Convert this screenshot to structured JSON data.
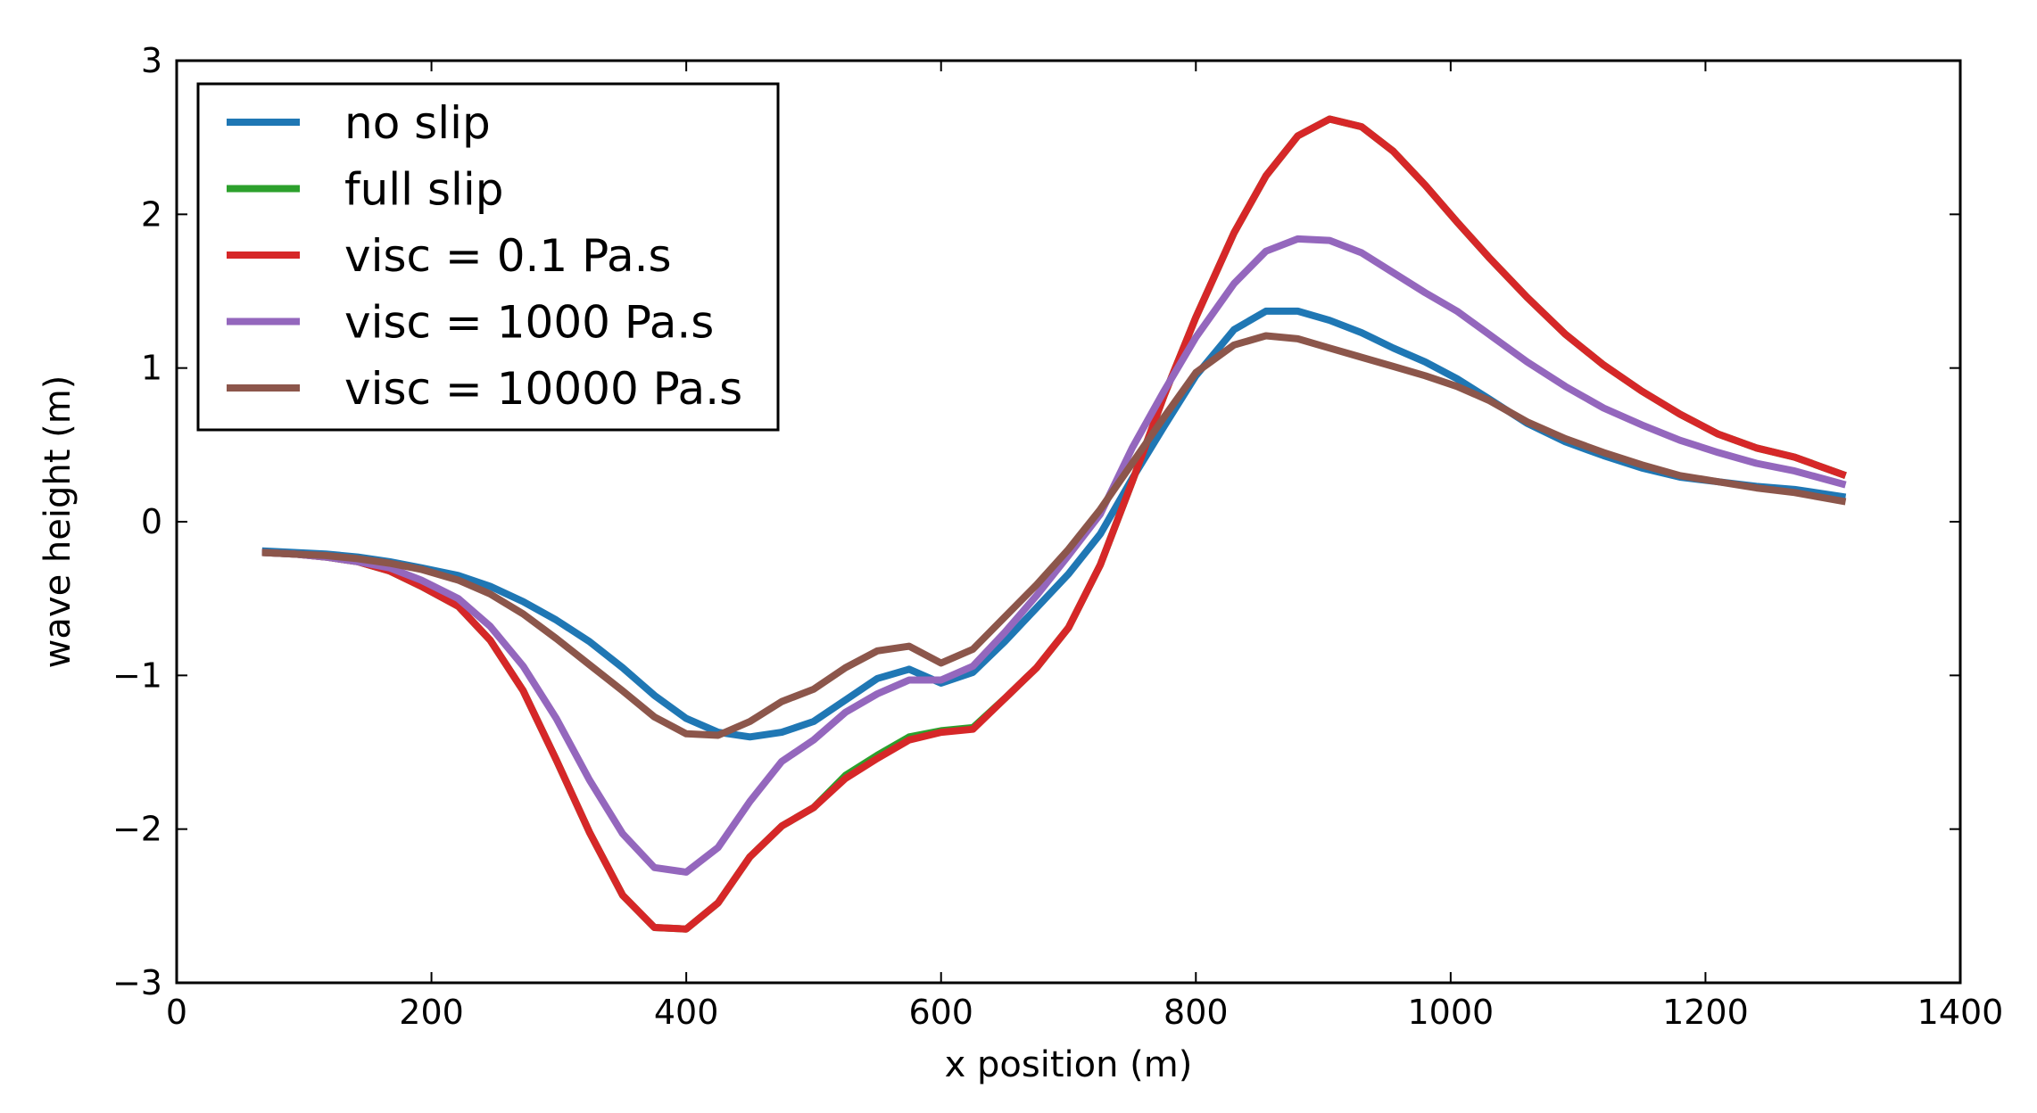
{
  "chart_data": {
    "type": "line",
    "title": "",
    "xlabel": "x position (m)",
    "ylabel": "wave height (m)",
    "xlim": [
      0,
      1400
    ],
    "ylim": [
      -3,
      3
    ],
    "xticks": [
      0,
      200,
      400,
      600,
      800,
      1000,
      1200,
      1400
    ],
    "xtick_labels": [
      "0",
      "200",
      "400",
      "600",
      "800",
      "1000",
      "1200",
      "1400"
    ],
    "yticks": [
      -3,
      -2,
      -1,
      0,
      1,
      2,
      3
    ],
    "ytick_labels": [
      "−3",
      "−2",
      "−1",
      "0",
      "1",
      "2",
      "3"
    ],
    "grid": false,
    "legend_position": "top-left",
    "x": [
      67,
      92,
      117,
      142,
      167,
      192,
      221,
      246,
      272,
      298,
      324,
      350,
      375,
      400,
      425,
      450,
      475,
      500,
      525,
      550,
      575,
      600,
      625,
      650,
      675,
      700,
      725,
      750,
      775,
      800,
      830,
      855,
      880,
      905,
      930,
      955,
      980,
      1005,
      1030,
      1060,
      1090,
      1120,
      1150,
      1180,
      1210,
      1240,
      1270,
      1310
    ],
    "series": [
      {
        "name": "no slip",
        "color": "#1f77b4",
        "values": [
          -0.19,
          -0.2,
          -0.21,
          -0.23,
          -0.26,
          -0.3,
          -0.35,
          -0.42,
          -0.52,
          -0.64,
          -0.78,
          -0.95,
          -1.13,
          -1.28,
          -1.37,
          -1.4,
          -1.37,
          -1.3,
          -1.16,
          -1.02,
          -0.96,
          -1.05,
          -0.98,
          -0.78,
          -0.56,
          -0.34,
          -0.08,
          0.28,
          0.62,
          0.95,
          1.25,
          1.37,
          1.37,
          1.31,
          1.23,
          1.13,
          1.04,
          0.93,
          0.8,
          0.64,
          0.52,
          0.43,
          0.35,
          0.29,
          0.26,
          0.23,
          0.21,
          0.16
        ]
      },
      {
        "name": "full slip",
        "color": "#2ca02c",
        "values": [
          -0.2,
          -0.21,
          -0.23,
          -0.26,
          -0.32,
          -0.42,
          -0.55,
          -0.77,
          -1.1,
          -1.55,
          -2.02,
          -2.43,
          -2.64,
          -2.65,
          -2.48,
          -2.18,
          -1.98,
          -1.86,
          -1.65,
          -1.52,
          -1.4,
          -1.36,
          -1.34,
          -1.15,
          -0.95,
          -0.69,
          -0.28,
          0.26,
          0.82,
          1.33,
          1.88,
          2.25,
          2.51,
          2.62,
          2.57,
          2.41,
          2.19,
          1.95,
          1.72,
          1.46,
          1.22,
          1.02,
          0.85,
          0.7,
          0.57,
          0.48,
          0.42,
          0.3
        ]
      },
      {
        "name": "visc = 0.1 Pa.s",
        "color": "#d62728",
        "values": [
          -0.2,
          -0.21,
          -0.23,
          -0.26,
          -0.32,
          -0.42,
          -0.55,
          -0.77,
          -1.1,
          -1.55,
          -2.02,
          -2.43,
          -2.64,
          -2.65,
          -2.48,
          -2.18,
          -1.98,
          -1.86,
          -1.67,
          -1.54,
          -1.42,
          -1.37,
          -1.35,
          -1.15,
          -0.95,
          -0.69,
          -0.28,
          0.26,
          0.82,
          1.33,
          1.88,
          2.25,
          2.51,
          2.62,
          2.57,
          2.41,
          2.19,
          1.95,
          1.72,
          1.46,
          1.22,
          1.02,
          0.85,
          0.7,
          0.57,
          0.48,
          0.42,
          0.3
        ]
      },
      {
        "name": "visc = 1000 Pa.s",
        "color": "#9467bd",
        "values": [
          -0.2,
          -0.21,
          -0.23,
          -0.26,
          -0.3,
          -0.38,
          -0.5,
          -0.68,
          -0.94,
          -1.28,
          -1.68,
          -2.03,
          -2.25,
          -2.28,
          -2.12,
          -1.82,
          -1.56,
          -1.42,
          -1.24,
          -1.12,
          -1.03,
          -1.03,
          -0.94,
          -0.72,
          -0.48,
          -0.22,
          0.05,
          0.48,
          0.85,
          1.2,
          1.55,
          1.76,
          1.84,
          1.83,
          1.75,
          1.62,
          1.49,
          1.37,
          1.22,
          1.04,
          0.88,
          0.74,
          0.63,
          0.53,
          0.45,
          0.38,
          0.33,
          0.24
        ]
      },
      {
        "name": "visc = 10000 Pa.s",
        "color": "#8c564b",
        "values": [
          -0.2,
          -0.21,
          -0.22,
          -0.24,
          -0.27,
          -0.31,
          -0.38,
          -0.47,
          -0.6,
          -0.76,
          -0.93,
          -1.1,
          -1.27,
          -1.38,
          -1.39,
          -1.3,
          -1.17,
          -1.09,
          -0.95,
          -0.84,
          -0.81,
          -0.92,
          -0.83,
          -0.62,
          -0.41,
          -0.18,
          0.08,
          0.38,
          0.68,
          0.97,
          1.15,
          1.21,
          1.19,
          1.13,
          1.07,
          1.01,
          0.95,
          0.88,
          0.79,
          0.65,
          0.54,
          0.45,
          0.37,
          0.3,
          0.26,
          0.22,
          0.19,
          0.13
        ]
      }
    ]
  }
}
